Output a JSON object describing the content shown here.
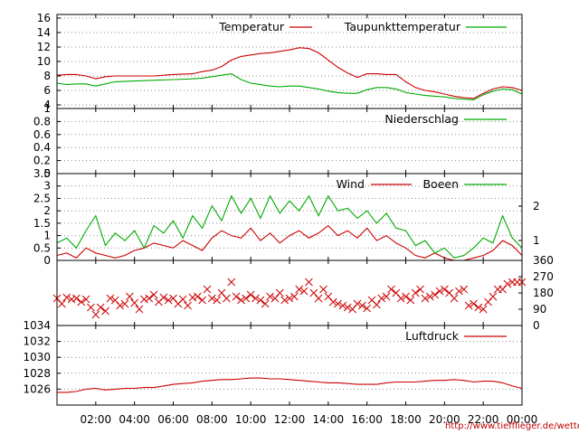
{
  "chart_data": [
    {
      "type": "line",
      "ylim": [
        3.5,
        16.5
      ],
      "yticks": [
        4,
        6,
        8,
        10,
        12,
        14,
        16
      ],
      "series": [
        {
          "name": "Temperatur",
          "color": "#cc0000",
          "x": [
            0,
            0.5,
            1,
            1.5,
            2,
            2.5,
            3,
            4,
            5,
            6,
            7,
            7.5,
            8,
            8.5,
            9,
            9.5,
            10,
            10.5,
            11,
            11.5,
            12,
            12.5,
            13,
            13.5,
            14,
            14.5,
            15,
            15.5,
            16,
            16.5,
            17,
            17.5,
            18,
            18.5,
            19,
            19.5,
            20,
            20.5,
            21,
            21.5,
            22,
            22.5,
            23,
            23.5,
            24
          ],
          "values": [
            8.1,
            8.2,
            8.2,
            8.0,
            7.6,
            7.9,
            8.0,
            8.0,
            8.0,
            8.2,
            8.3,
            8.6,
            8.8,
            9.3,
            10.2,
            10.7,
            10.9,
            11.1,
            11.2,
            11.4,
            11.6,
            11.9,
            11.8,
            11.2,
            10.2,
            9.2,
            8.4,
            7.8,
            8.3,
            8.3,
            8.2,
            8.2,
            7.2,
            6.4,
            6.0,
            5.8,
            5.5,
            5.2,
            5.0,
            4.9,
            5.6,
            6.2,
            6.5,
            6.4,
            6.0
          ]
        },
        {
          "name": "Taupunkttemperatur",
          "color": "#00aa00",
          "x": [
            0,
            0.5,
            1,
            1.5,
            2,
            2.5,
            3,
            4,
            5,
            6,
            7,
            7.5,
            8,
            8.5,
            9,
            9.5,
            10,
            10.5,
            11,
            11.5,
            12,
            12.5,
            13,
            13.5,
            14,
            14.5,
            15,
            15.5,
            16,
            16.5,
            17,
            17.5,
            18,
            18.5,
            19,
            19.5,
            20,
            20.5,
            21,
            21.5,
            22,
            22.5,
            23,
            23.5,
            24
          ],
          "values": [
            7.0,
            6.8,
            6.9,
            6.9,
            6.6,
            6.9,
            7.2,
            7.3,
            7.4,
            7.5,
            7.6,
            7.7,
            7.9,
            8.1,
            8.3,
            7.5,
            7.0,
            6.8,
            6.6,
            6.5,
            6.6,
            6.6,
            6.4,
            6.2,
            5.9,
            5.7,
            5.6,
            5.6,
            6.1,
            6.4,
            6.4,
            6.2,
            5.7,
            5.5,
            5.3,
            5.2,
            5.1,
            4.9,
            4.8,
            4.7,
            5.4,
            5.9,
            6.2,
            6.1,
            5.5
          ]
        }
      ]
    },
    {
      "type": "line",
      "ylim": [
        0,
        1
      ],
      "yticks": [
        "0",
        "0.2",
        "0.4",
        "0.6",
        "0.8",
        "1"
      ],
      "series": [
        {
          "name": "Niederschlag",
          "color": "#00aa00",
          "x": [
            0,
            24
          ],
          "values": [
            0,
            0
          ]
        }
      ]
    },
    {
      "type": "line",
      "ylim": [
        0,
        3.5
      ],
      "yticks": [
        "0",
        "0.5",
        "1",
        "1.5",
        "2",
        "2.5",
        "3",
        "3.5"
      ],
      "yticks_right": [
        "1",
        "2"
      ],
      "series": [
        {
          "name": "Wind",
          "color": "#cc0000",
          "x": [
            0,
            0.5,
            1,
            1.5,
            2,
            2.5,
            3,
            3.5,
            4,
            4.5,
            5,
            5.5,
            6,
            6.5,
            7,
            7.5,
            8,
            8.5,
            9,
            9.5,
            10,
            10.5,
            11,
            11.5,
            12,
            12.5,
            13,
            13.5,
            14,
            14.5,
            15,
            15.5,
            16,
            16.5,
            17,
            17.5,
            18,
            18.5,
            19,
            19.5,
            20,
            20.5,
            21,
            21.5,
            22,
            22.5,
            23,
            23.5,
            24
          ],
          "values": [
            0.2,
            0.3,
            0.1,
            0.5,
            0.3,
            0.2,
            0.1,
            0.2,
            0.4,
            0.5,
            0.7,
            0.6,
            0.5,
            0.8,
            0.6,
            0.4,
            0.9,
            1.2,
            1.0,
            0.9,
            1.3,
            0.8,
            1.1,
            0.7,
            1.0,
            1.2,
            0.9,
            1.1,
            1.4,
            1.0,
            1.2,
            0.9,
            1.3,
            0.8,
            1.0,
            0.7,
            0.5,
            0.2,
            0.1,
            0.3,
            0.1,
            0.0,
            0.0,
            0.1,
            0.2,
            0.4,
            0.8,
            0.6,
            0.2
          ]
        },
        {
          "name": "Boeen",
          "color": "#00aa00",
          "x": [
            0,
            0.5,
            1,
            1.5,
            2,
            2.5,
            3,
            3.5,
            4,
            4.5,
            5,
            5.5,
            6,
            6.5,
            7,
            7.5,
            8,
            8.5,
            9,
            9.5,
            10,
            10.5,
            11,
            11.5,
            12,
            12.5,
            13,
            13.5,
            14,
            14.5,
            15,
            15.5,
            16,
            16.5,
            17,
            17.5,
            18,
            18.5,
            19,
            19.5,
            20,
            20.5,
            21,
            21.5,
            22,
            22.5,
            23,
            23.5,
            24
          ],
          "values": [
            0.7,
            0.9,
            0.5,
            1.2,
            1.8,
            0.6,
            1.1,
            0.8,
            1.2,
            0.5,
            1.4,
            1.1,
            1.6,
            0.9,
            1.8,
            1.3,
            2.2,
            1.6,
            2.6,
            1.9,
            2.5,
            1.7,
            2.6,
            1.9,
            2.4,
            2.0,
            2.6,
            1.8,
            2.6,
            2.0,
            2.1,
            1.7,
            2.0,
            1.5,
            1.9,
            1.3,
            1.2,
            0.6,
            0.8,
            0.3,
            0.5,
            0.1,
            0.2,
            0.5,
            0.9,
            0.7,
            1.8,
            0.9,
            0.5
          ]
        }
      ]
    },
    {
      "type": "scatter",
      "ylim": [
        0,
        360
      ],
      "yticks_right": [
        "0",
        "90",
        "180",
        "270",
        "360"
      ],
      "series": [
        {
          "name": "",
          "color": "#cc0000",
          "marker": "x",
          "x": [
            0,
            0.25,
            0.5,
            0.75,
            1,
            1.25,
            1.5,
            1.75,
            2,
            2.25,
            2.5,
            2.75,
            3,
            3.25,
            3.5,
            3.75,
            4,
            4.25,
            4.5,
            4.75,
            5,
            5.25,
            5.5,
            5.75,
            6,
            6.25,
            6.5,
            6.75,
            7,
            7.25,
            7.5,
            7.75,
            8,
            8.25,
            8.5,
            8.75,
            9,
            9.25,
            9.5,
            9.75,
            10,
            10.25,
            10.5,
            10.75,
            11,
            11.25,
            11.5,
            11.75,
            12,
            12.25,
            12.5,
            12.75,
            13,
            13.25,
            13.5,
            13.75,
            14,
            14.25,
            14.5,
            14.75,
            15,
            15.25,
            15.5,
            15.75,
            16,
            16.25,
            16.5,
            16.75,
            17,
            17.25,
            17.5,
            17.75,
            18,
            18.25,
            18.5,
            18.75,
            19,
            19.25,
            19.5,
            19.75,
            20,
            20.25,
            20.5,
            20.75,
            21,
            21.25,
            21.5,
            21.75,
            22,
            22.25,
            22.5,
            22.75,
            23,
            23.25,
            23.5,
            23.75,
            24
          ],
          "values": [
            150,
            120,
            155,
            145,
            150,
            130,
            145,
            100,
            60,
            100,
            80,
            150,
            140,
            110,
            120,
            160,
            125,
            90,
            145,
            150,
            170,
            130,
            155,
            140,
            150,
            120,
            145,
            110,
            155,
            160,
            140,
            200,
            150,
            140,
            180,
            150,
            240,
            160,
            140,
            150,
            170,
            150,
            140,
            120,
            160,
            150,
            180,
            140,
            150,
            160,
            200,
            190,
            240,
            180,
            150,
            200,
            160,
            130,
            120,
            110,
            100,
            90,
            120,
            110,
            95,
            140,
            115,
            150,
            160,
            200,
            180,
            150,
            160,
            140,
            180,
            200,
            150,
            160,
            170,
            190,
            200,
            180,
            150,
            190,
            200,
            110,
            120,
            100,
            90,
            130,
            160,
            200,
            200,
            230,
            240,
            240,
            240
          ]
        }
      ]
    },
    {
      "type": "line",
      "ylim": [
        1024,
        1034
      ],
      "yticks": [
        "1026",
        "1028",
        "1030",
        "1032",
        "1034"
      ],
      "series": [
        {
          "name": "Luftdruck",
          "color": "#cc0000",
          "x": [
            0,
            0.5,
            1,
            1.5,
            2,
            2.5,
            3,
            3.5,
            4,
            4.5,
            5,
            5.5,
            6,
            6.5,
            7,
            7.5,
            8,
            8.5,
            9,
            9.5,
            10,
            10.5,
            11,
            11.5,
            12,
            12.5,
            13,
            13.5,
            14,
            14.5,
            15,
            15.5,
            16,
            16.5,
            17,
            17.5,
            18,
            18.5,
            19,
            19.5,
            20,
            20.5,
            21,
            21.5,
            22,
            22.5,
            23,
            23.5,
            24
          ],
          "values": [
            1025.6,
            1025.6,
            1025.7,
            1026.0,
            1026.1,
            1025.9,
            1026.0,
            1026.1,
            1026.1,
            1026.2,
            1026.2,
            1026.4,
            1026.6,
            1026.7,
            1026.8,
            1027.0,
            1027.1,
            1027.2,
            1027.2,
            1027.3,
            1027.4,
            1027.4,
            1027.3,
            1027.3,
            1027.2,
            1027.1,
            1027.0,
            1026.9,
            1026.8,
            1026.8,
            1026.7,
            1026.6,
            1026.6,
            1026.6,
            1026.8,
            1026.9,
            1026.9,
            1026.9,
            1027.0,
            1027.1,
            1027.1,
            1027.2,
            1027.1,
            1026.9,
            1027.0,
            1027.0,
            1026.8,
            1026.4,
            1026.1
          ]
        }
      ]
    }
  ],
  "x_axis": {
    "ticks": [
      "02:00",
      "04:00",
      "06:00",
      "08:00",
      "10:00",
      "12:00",
      "14:00",
      "16:00",
      "18:00",
      "20:00",
      "22:00",
      "00:00"
    ],
    "range": [
      0,
      24
    ]
  },
  "source_text": "http://www.tiefflieger.de/wetter/"
}
